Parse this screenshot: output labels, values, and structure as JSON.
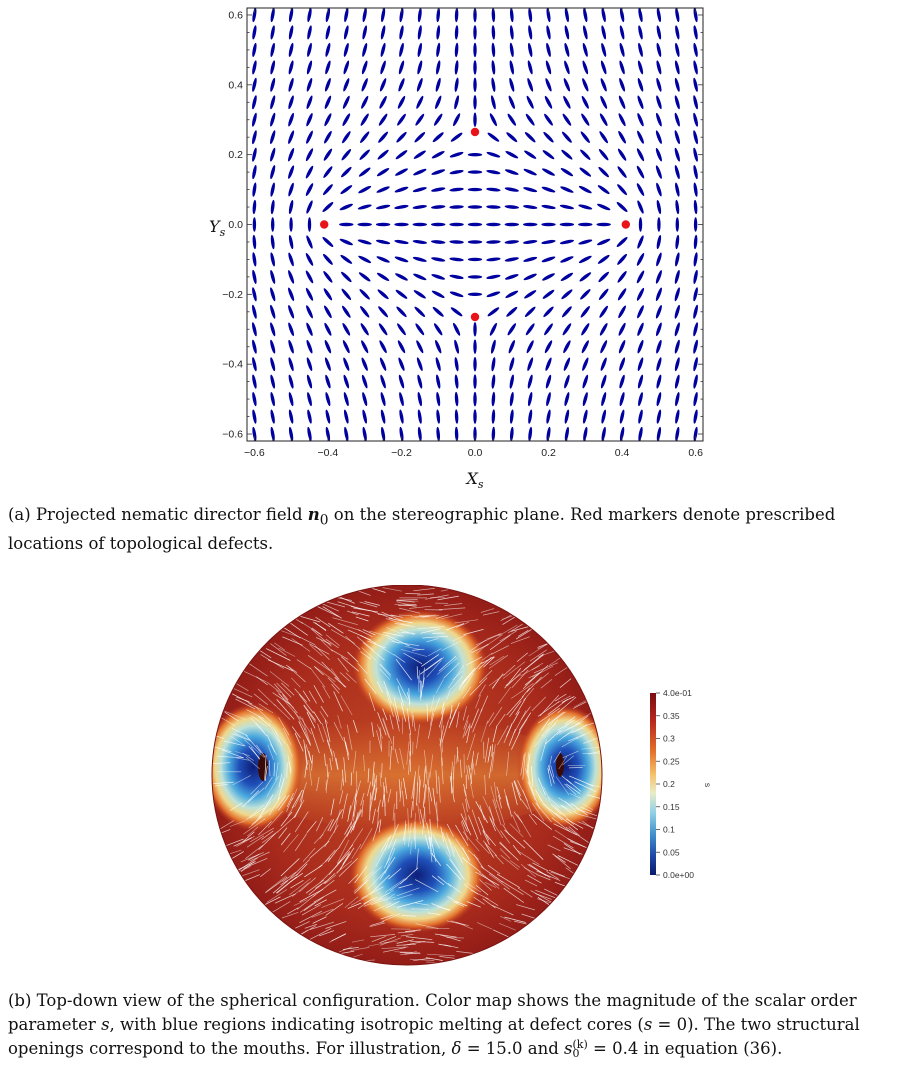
{
  "figure_a": {
    "xlabel": "X",
    "xlabel_sub": "s",
    "ylabel": "Y",
    "ylabel_sub": "s",
    "xticks": [
      "−0.6",
      "−0.4",
      "−0.2",
      "0.0",
      "0.2",
      "0.4",
      "0.6"
    ],
    "yticks": [
      "0.6",
      "0.4",
      "0.2",
      "0.0",
      "−0.2",
      "−0.4",
      "−0.6"
    ],
    "director_color": "#0000a0",
    "defect_color": "#e8141a"
  },
  "chart_data": {
    "type": "scatter",
    "title": "",
    "xlabel": "Xs",
    "ylabel": "Ys",
    "xlim": [
      -0.62,
      0.62
    ],
    "ylim": [
      -0.62,
      0.62
    ],
    "grid": false,
    "series": [
      {
        "x": [
          -0.41,
          0.41,
          0.0,
          0.0
        ],
        "y": [
          0.0,
          0.0,
          0.265,
          -0.265
        ]
      }
    ]
  },
  "caption_a": {
    "label": "(a) Projected nematic director field ",
    "symbol": "n",
    "symbol_sub": "0",
    "rest": " on the stereographic plane. Red markers denote prescribed locations of topological defects."
  },
  "figure_b": {
    "colorbar_ticks": [
      "4.0e-01",
      "0.35",
      "0.3",
      "0.25",
      "0.2",
      "0.15",
      "0.1",
      "0.05",
      "0.0e+00"
    ],
    "colorbar_label": "s"
  },
  "caption_b": {
    "part1": "(b) Top-down view of the spherical configuration. Color map shows the magnitude of the scalar order parameter ",
    "s1": "s",
    "part2": ", with blue regions indicating isotropic melting at defect cores (",
    "s2": "s",
    "part3": " = 0). The two structural openings correspond to the mouths. For illustration, ",
    "delta": "δ",
    "part4": " = 15.0 and ",
    "s3": "s",
    "s3_sub": "0",
    "s3_sup": "(k)",
    "part5": " = 0.4 in equation (36)."
  }
}
